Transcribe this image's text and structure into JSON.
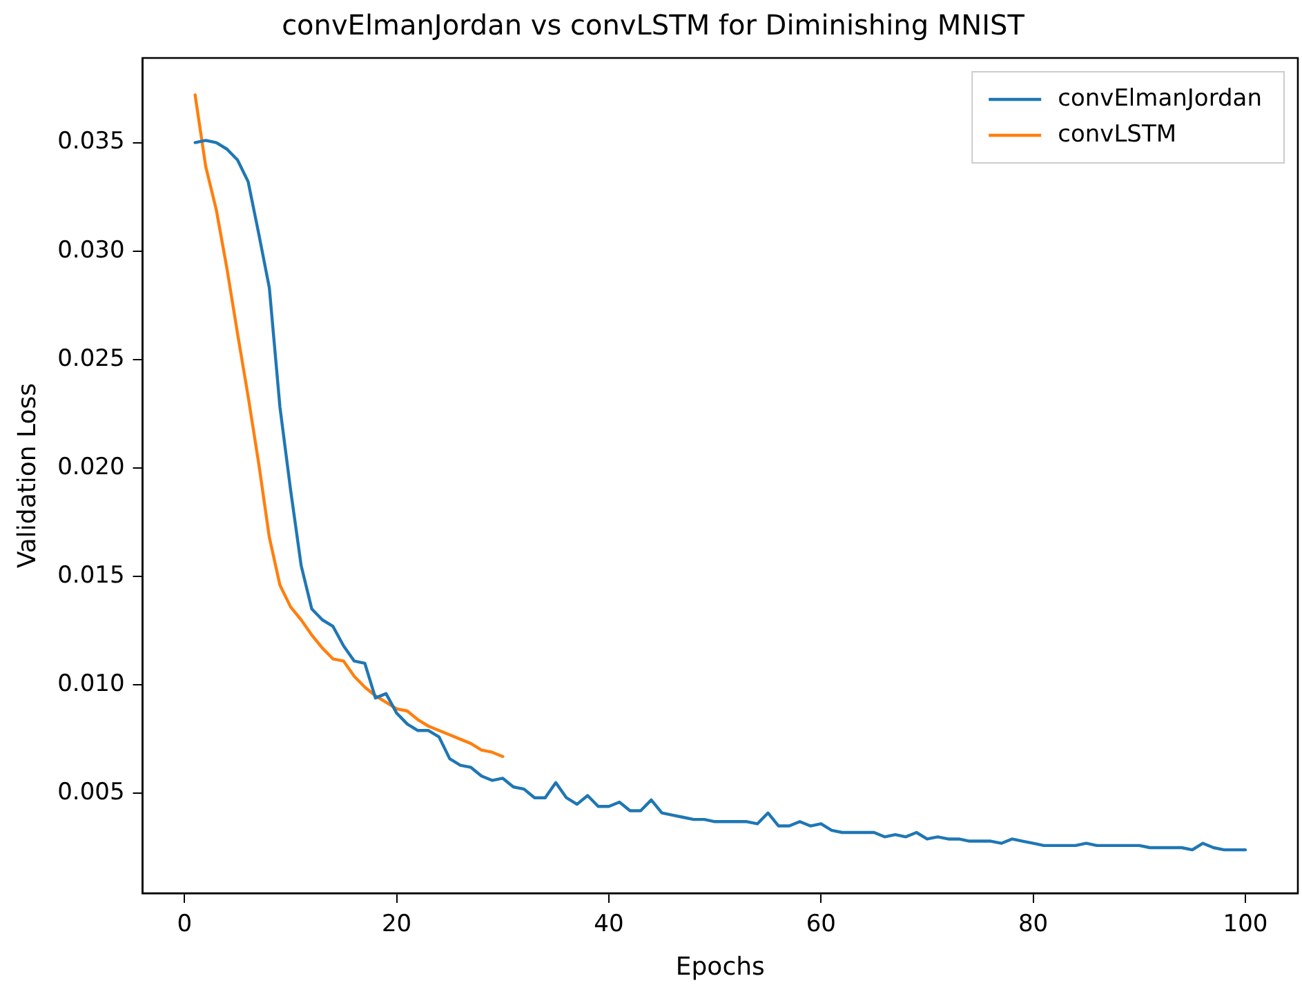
{
  "chart_data": {
    "type": "line",
    "title": "convElmanJordan vs convLSTM for Diminishing MNIST",
    "xlabel": "Epochs",
    "ylabel": "Validation Loss",
    "x": [
      1,
      2,
      3,
      4,
      5,
      6,
      7,
      8,
      9,
      10,
      11,
      12,
      13,
      14,
      15,
      16,
      17,
      18,
      19,
      20,
      21,
      22,
      23,
      24,
      25,
      26,
      27,
      28,
      29,
      30,
      31,
      32,
      33,
      34,
      35,
      36,
      37,
      38,
      39,
      40,
      41,
      42,
      43,
      44,
      45,
      46,
      47,
      48,
      49,
      50,
      51,
      52,
      53,
      54,
      55,
      56,
      57,
      58,
      59,
      60,
      61,
      62,
      63,
      64,
      65,
      66,
      67,
      68,
      69,
      70,
      71,
      72,
      73,
      74,
      75,
      76,
      77,
      78,
      79,
      80,
      81,
      82,
      83,
      84,
      85,
      86,
      87,
      88,
      89,
      90,
      91,
      92,
      93,
      94,
      95,
      96,
      97,
      98,
      99,
      100
    ],
    "series": [
      {
        "name": "convElmanJordan",
        "color": "#1f77b4",
        "values": [
          0.035,
          0.0351,
          0.035,
          0.0347,
          0.0342,
          0.0332,
          0.0308,
          0.0283,
          0.0228,
          0.019,
          0.0155,
          0.0135,
          0.013,
          0.0127,
          0.0118,
          0.0111,
          0.011,
          0.0094,
          0.0096,
          0.0087,
          0.0082,
          0.0079,
          0.0079,
          0.0076,
          0.0066,
          0.0063,
          0.0062,
          0.0058,
          0.0056,
          0.0057,
          0.0053,
          0.0052,
          0.0048,
          0.0048,
          0.0055,
          0.0048,
          0.0045,
          0.0049,
          0.0044,
          0.0044,
          0.0046,
          0.0042,
          0.0042,
          0.0047,
          0.0041,
          0.004,
          0.0039,
          0.0038,
          0.0038,
          0.0037,
          0.0037,
          0.0037,
          0.0037,
          0.0036,
          0.0041,
          0.0035,
          0.0035,
          0.0037,
          0.0035,
          0.0036,
          0.0033,
          0.0032,
          0.0032,
          0.0032,
          0.0032,
          0.003,
          0.0031,
          0.003,
          0.0032,
          0.0029,
          0.003,
          0.0029,
          0.0029,
          0.0028,
          0.0028,
          0.0028,
          0.0027,
          0.0029,
          0.0028,
          0.0027,
          0.0026,
          0.0026,
          0.0026,
          0.0026,
          0.0027,
          0.0026,
          0.0026,
          0.0026,
          0.0026,
          0.0026,
          0.0025,
          0.0025,
          0.0025,
          0.0025,
          0.0024,
          0.0027,
          0.0025,
          0.0024,
          0.0024,
          0.0024
        ]
      },
      {
        "name": "convLSTM",
        "color": "#ff7f0e",
        "x": [
          1,
          2,
          3,
          4,
          5,
          6,
          7,
          8,
          9,
          10,
          11,
          12,
          13,
          14,
          15,
          16,
          17,
          18,
          19,
          20,
          21,
          22,
          23,
          24,
          25,
          26,
          27,
          28,
          29,
          30
        ],
        "values": [
          0.0372,
          0.0339,
          0.0319,
          0.0292,
          0.0262,
          0.0233,
          0.0202,
          0.0168,
          0.0146,
          0.0136,
          0.013,
          0.0123,
          0.0117,
          0.0112,
          0.0111,
          0.0104,
          0.0099,
          0.0095,
          0.0092,
          0.0089,
          0.0088,
          0.0084,
          0.0081,
          0.0079,
          0.0077,
          0.0075,
          0.0073,
          0.007,
          0.0069,
          0.0067
        ]
      }
    ],
    "xlim": [
      -3.95,
      104.95
    ],
    "xticks": [
      0,
      20,
      40,
      60,
      80,
      100
    ],
    "ylim": [
      0.0004,
      0.0389
    ],
    "yticks": [
      0.005,
      {
        "value": 0.01,
        "label": "0.010"
      },
      0.015,
      {
        "value": 0.02,
        "label": "0.020"
      },
      0.025,
      {
        "value": 0.03,
        "label": "0.030"
      },
      0.035
    ],
    "grid": false,
    "legend": "top right",
    "marker": "none",
    "line_style": "solid"
  }
}
